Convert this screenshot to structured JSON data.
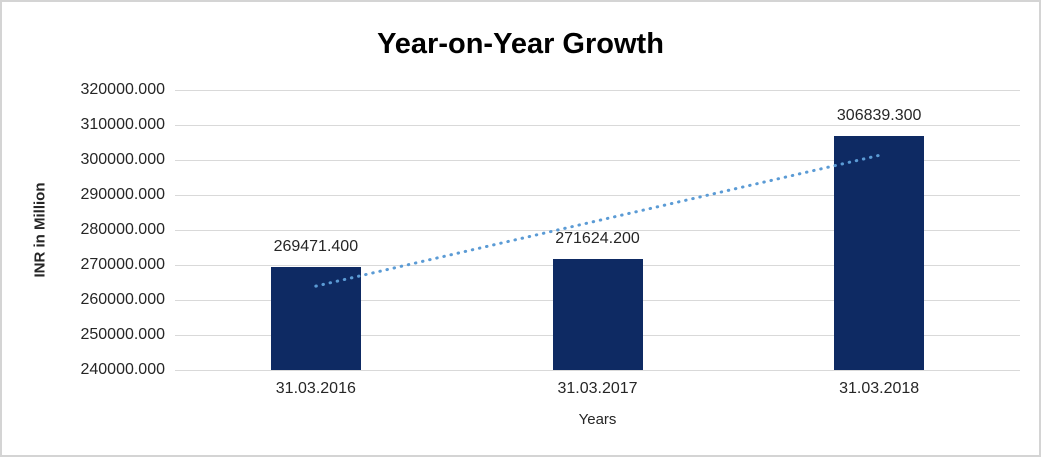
{
  "chart_data": {
    "type": "bar",
    "title": "Year-on-Year Growth",
    "categories": [
      "31.03.2016",
      "31.03.2017",
      "31.03.2018"
    ],
    "values": [
      269471.4,
      271624.2,
      306839.3
    ],
    "value_labels": [
      "269471.400",
      "271624.200",
      "306839.300"
    ],
    "xlabel": "Years",
    "ylabel": "INR in Million",
    "ylim": [
      240000,
      320000
    ],
    "ytick_step": 10000,
    "ytick_labels": [
      "320000.000",
      "310000.000",
      "300000.000",
      "290000.000",
      "280000.000",
      "270000.000",
      "260000.000",
      "250000.000",
      "240000.000"
    ],
    "grid": true,
    "legend": "none",
    "trendline": {
      "type": "linear",
      "style": "dotted"
    },
    "colors": {
      "bar": "#0e2a63",
      "trendline": "#5b9bd5",
      "gridline": "#d9d9d9",
      "text": "#262626",
      "title": "#000000",
      "border": "#d4d4d4",
      "background": "#ffffff"
    }
  }
}
